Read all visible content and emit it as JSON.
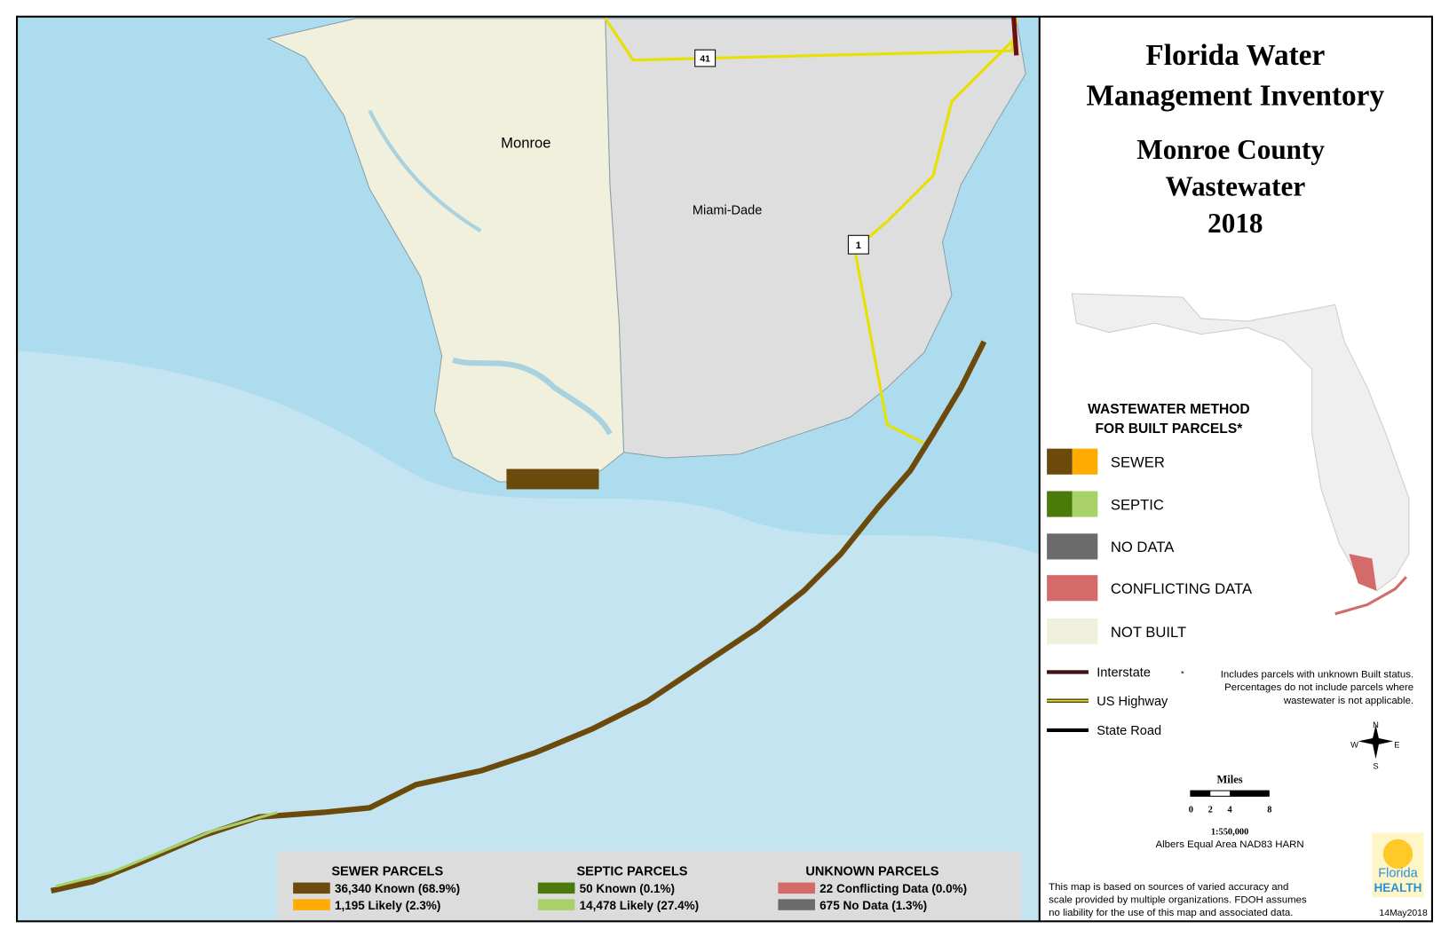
{
  "header": {
    "title": [
      "Florida Water",
      "Management Inventory"
    ],
    "subtitle": [
      "Monroe County",
      "Wastewater",
      "2018"
    ]
  },
  "map_labels": [
    "Monroe",
    "Miami-Dade"
  ],
  "highway_shields": [
    "41",
    "1"
  ],
  "legend": {
    "title": [
      "WASTEWATER METHOD",
      "FOR BUILT PARCELS*"
    ],
    "items": [
      {
        "label": "SEWER",
        "colors": [
          "#6b4a0c",
          "#ffab00"
        ]
      },
      {
        "label": "SEPTIC",
        "colors": [
          "#4a7a0a",
          "#a9d16a"
        ]
      },
      {
        "label": "NO DATA",
        "colors": [
          "#6b6b6b"
        ]
      },
      {
        "label": "CONFLICTING DATA",
        "colors": [
          "#d46a6a"
        ]
      },
      {
        "label": "NOT BUILT",
        "colors": [
          "#f1f0dc"
        ]
      }
    ]
  },
  "roads": [
    {
      "label": "Interstate",
      "color": "#6b0f12",
      "casing": "#000000"
    },
    {
      "label": "US Highway",
      "color": "#e8e000",
      "casing": "#000000"
    },
    {
      "label": "State Road",
      "color": "#000000",
      "casing": "#000000"
    }
  ],
  "footnote": [
    "Includes parcels with unknown Built status.",
    "Percentages do not include parcels where",
    "wastewater is not applicable."
  ],
  "compass": [
    "N",
    "W",
    "E",
    "S"
  ],
  "scale": {
    "title": "Miles",
    "ticks": [
      "0",
      "2",
      "4",
      "8"
    ],
    "ratio": "1:550,000",
    "projection": "Albers Equal Area NAD83 HARN"
  },
  "parcel_summary": [
    {
      "title": "SEWER PARCELS",
      "rows": [
        {
          "label": "36,340 Known (68.9%)",
          "color": "#6b4a0c"
        },
        {
          "label": "1,195 Likely (2.3%)",
          "color": "#ffab00"
        }
      ]
    },
    {
      "title": "SEPTIC PARCELS",
      "rows": [
        {
          "label": "50 Known (0.1%)",
          "color": "#4a7a0a"
        },
        {
          "label": "14,478 Likely (27.4%)",
          "color": "#a9d16a"
        }
      ]
    },
    {
      "title": "UNKNOWN PARCELS",
      "rows": [
        {
          "label": "22 Conflicting Data (0.0%)",
          "color": "#d46a6a"
        },
        {
          "label": "675 No Data (1.3%)",
          "color": "#6b6b6b"
        }
      ]
    }
  ],
  "disclaimer": [
    "This map is based on sources of varied accuracy and",
    "scale provided by multiple organizations. FDOH assumes",
    "no liability for the use of this map and associated data."
  ],
  "date": "14May2018",
  "logo": [
    "Florida",
    "HEALTH"
  ]
}
